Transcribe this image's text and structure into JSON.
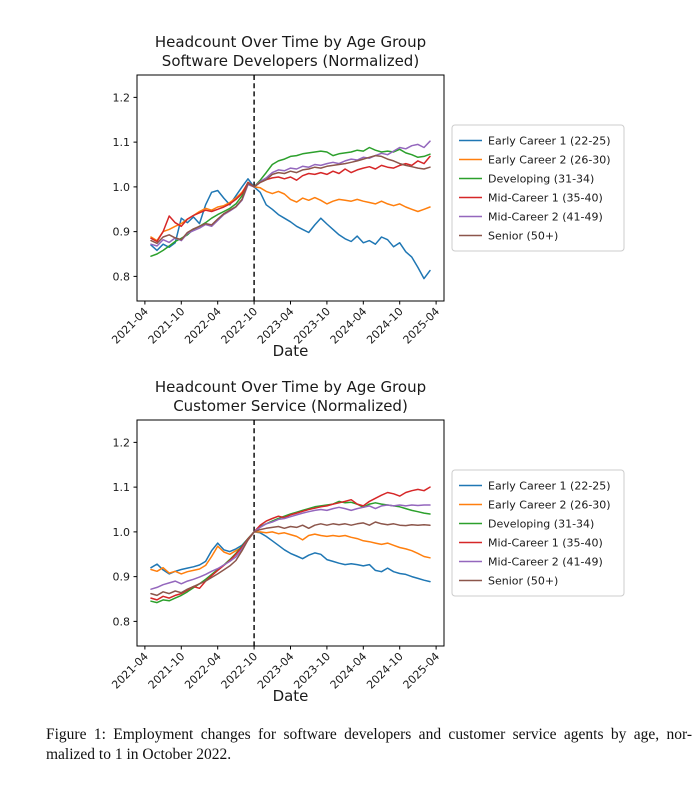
{
  "figure": {
    "caption_lines": [
      "Figure 1: Employment changes for software developers and customer service agents by age, nor-",
      "malized to 1 in October 2022."
    ]
  },
  "palette": {
    "blue": "#1f77b4",
    "orange": "#ff7f0e",
    "green": "#2ca02c",
    "red": "#d62728",
    "purple": "#9467bd",
    "brown": "#8c564b",
    "vline": "#000000",
    "spine": "#000000",
    "legend_edge": "#cccccc",
    "text": "#1a1a1a"
  },
  "chart_data": [
    {
      "type": "line",
      "title": "Headcount Over Time by Age Group",
      "subtitle": "Software Developers (Normalized)",
      "xlabel": "Date",
      "ylabel": "",
      "grid": false,
      "legend_position": "outside center right",
      "vline_x": "2022-10",
      "vline_style": "dashed",
      "yticks": [
        0.8,
        0.9,
        1.0,
        1.1,
        1.2
      ],
      "ylim": [
        0.745,
        1.25
      ],
      "xlim": [
        -2.3,
        48.3
      ],
      "xtick_labels": [
        "2021-04",
        "2021-10",
        "2022-04",
        "2022-10",
        "2023-04",
        "2023-10",
        "2024-04",
        "2024-10",
        "2025-04"
      ],
      "x": [
        "2021-05",
        "2021-06",
        "2021-07",
        "2021-08",
        "2021-09",
        "2021-10",
        "2021-11",
        "2021-12",
        "2022-01",
        "2022-02",
        "2022-03",
        "2022-04",
        "2022-05",
        "2022-06",
        "2022-07",
        "2022-08",
        "2022-09",
        "2022-10",
        "2022-11",
        "2022-12",
        "2023-01",
        "2023-02",
        "2023-03",
        "2023-04",
        "2023-05",
        "2023-06",
        "2023-07",
        "2023-08",
        "2023-09",
        "2023-10",
        "2023-11",
        "2023-12",
        "2024-01",
        "2024-02",
        "2024-03",
        "2024-04",
        "2024-05",
        "2024-06",
        "2024-07",
        "2024-08",
        "2024-09",
        "2024-10",
        "2024-11",
        "2024-12",
        "2025-01",
        "2025-02",
        "2025-03"
      ],
      "series": [
        {
          "name": "Early Career 1 (22-25)",
          "color": "#1f77b4",
          "values": [
            0.87,
            0.858,
            0.872,
            0.865,
            0.875,
            0.93,
            0.92,
            0.933,
            0.918,
            0.96,
            0.988,
            0.992,
            0.975,
            0.96,
            0.98,
            1.0,
            1.018,
            1.0,
            0.988,
            0.96,
            0.95,
            0.938,
            0.93,
            0.922,
            0.912,
            0.905,
            0.898,
            0.915,
            0.93,
            0.917,
            0.905,
            0.893,
            0.884,
            0.878,
            0.89,
            0.875,
            0.88,
            0.872,
            0.888,
            0.882,
            0.866,
            0.875,
            0.855,
            0.843,
            0.82,
            0.795,
            0.813
          ]
        },
        {
          "name": "Early Career 2 (26-30)",
          "color": "#ff7f0e",
          "values": [
            0.888,
            0.88,
            0.9,
            0.905,
            0.912,
            0.918,
            0.928,
            0.936,
            0.945,
            0.952,
            0.948,
            0.955,
            0.958,
            0.965,
            0.975,
            0.988,
            1.008,
            1.0,
            0.998,
            0.99,
            0.985,
            0.99,
            0.984,
            0.972,
            0.966,
            0.975,
            0.97,
            0.976,
            0.97,
            0.962,
            0.968,
            0.972,
            0.97,
            0.968,
            0.972,
            0.968,
            0.965,
            0.962,
            0.968,
            0.962,
            0.958,
            0.962,
            0.955,
            0.95,
            0.945,
            0.95,
            0.955
          ]
        },
        {
          "name": "Developing (31-34)",
          "color": "#2ca02c",
          "values": [
            0.845,
            0.85,
            0.858,
            0.868,
            0.878,
            0.885,
            0.893,
            0.905,
            0.912,
            0.92,
            0.93,
            0.938,
            0.945,
            0.952,
            0.962,
            0.98,
            1.01,
            1.0,
            1.015,
            1.032,
            1.05,
            1.058,
            1.062,
            1.068,
            1.07,
            1.074,
            1.076,
            1.078,
            1.08,
            1.078,
            1.07,
            1.074,
            1.076,
            1.078,
            1.082,
            1.08,
            1.088,
            1.082,
            1.078,
            1.08,
            1.078,
            1.084,
            1.076,
            1.072,
            1.066,
            1.068,
            1.073
          ]
        },
        {
          "name": "Mid-Career 1 (35-40)",
          "color": "#d62728",
          "values": [
            0.885,
            0.878,
            0.9,
            0.935,
            0.92,
            0.912,
            0.928,
            0.936,
            0.942,
            0.948,
            0.945,
            0.95,
            0.955,
            0.962,
            0.972,
            0.985,
            1.01,
            1.0,
            1.01,
            1.016,
            1.02,
            1.022,
            1.018,
            1.022,
            1.015,
            1.025,
            1.03,
            1.028,
            1.032,
            1.028,
            1.035,
            1.03,
            1.04,
            1.032,
            1.038,
            1.042,
            1.045,
            1.04,
            1.048,
            1.044,
            1.042,
            1.048,
            1.052,
            1.048,
            1.058,
            1.052,
            1.068
          ]
        },
        {
          "name": "Mid-Career 2 (41-49)",
          "color": "#9467bd",
          "values": [
            0.872,
            0.868,
            0.882,
            0.876,
            0.886,
            0.88,
            0.896,
            0.902,
            0.908,
            0.916,
            0.912,
            0.925,
            0.938,
            0.946,
            0.955,
            0.97,
            1.005,
            1.0,
            1.012,
            1.02,
            1.032,
            1.038,
            1.036,
            1.042,
            1.04,
            1.046,
            1.044,
            1.05,
            1.048,
            1.052,
            1.055,
            1.052,
            1.058,
            1.062,
            1.06,
            1.066,
            1.064,
            1.07,
            1.075,
            1.072,
            1.08,
            1.088,
            1.085,
            1.092,
            1.095,
            1.088,
            1.102
          ]
        },
        {
          "name": "Senior (50+)",
          "color": "#8c564b",
          "values": [
            0.88,
            0.874,
            0.888,
            0.893,
            0.886,
            0.882,
            0.898,
            0.906,
            0.912,
            0.918,
            0.915,
            0.928,
            0.94,
            0.948,
            0.956,
            0.972,
            1.008,
            1.0,
            1.01,
            1.016,
            1.028,
            1.032,
            1.03,
            1.035,
            1.032,
            1.038,
            1.04,
            1.044,
            1.042,
            1.046,
            1.048,
            1.05,
            1.052,
            1.055,
            1.058,
            1.062,
            1.066,
            1.07,
            1.068,
            1.062,
            1.058,
            1.052,
            1.048,
            1.045,
            1.042,
            1.04,
            1.044
          ]
        }
      ]
    },
    {
      "type": "line",
      "title": "Headcount Over Time by Age Group",
      "subtitle": "Customer Service (Normalized)",
      "xlabel": "Date",
      "ylabel": "",
      "grid": false,
      "legend_position": "outside center right",
      "vline_x": "2022-10",
      "vline_style": "dashed",
      "yticks": [
        0.8,
        0.9,
        1.0,
        1.1,
        1.2
      ],
      "ylim": [
        0.745,
        1.25
      ],
      "xlim": [
        -2.3,
        48.3
      ],
      "xtick_labels": [
        "2021-04",
        "2021-10",
        "2022-04",
        "2022-10",
        "2023-04",
        "2023-10",
        "2024-04",
        "2024-10",
        "2025-04"
      ],
      "x": [
        "2021-05",
        "2021-06",
        "2021-07",
        "2021-08",
        "2021-09",
        "2021-10",
        "2021-11",
        "2021-12",
        "2022-01",
        "2022-02",
        "2022-03",
        "2022-04",
        "2022-05",
        "2022-06",
        "2022-07",
        "2022-08",
        "2022-09",
        "2022-10",
        "2022-11",
        "2022-12",
        "2023-01",
        "2023-02",
        "2023-03",
        "2023-04",
        "2023-05",
        "2023-06",
        "2023-07",
        "2023-08",
        "2023-09",
        "2023-10",
        "2023-11",
        "2023-12",
        "2024-01",
        "2024-02",
        "2024-03",
        "2024-04",
        "2024-05",
        "2024-06",
        "2024-07",
        "2024-08",
        "2024-09",
        "2024-10",
        "2024-11",
        "2024-12",
        "2025-01",
        "2025-02",
        "2025-03"
      ],
      "series": [
        {
          "name": "Early Career 1 (22-25)",
          "color": "#1f77b4",
          "values": [
            0.92,
            0.928,
            0.915,
            0.906,
            0.912,
            0.916,
            0.919,
            0.922,
            0.926,
            0.934,
            0.958,
            0.975,
            0.96,
            0.956,
            0.962,
            0.97,
            0.985,
            1.0,
            0.998,
            0.99,
            0.98,
            0.97,
            0.96,
            0.952,
            0.946,
            0.94,
            0.948,
            0.953,
            0.95,
            0.938,
            0.934,
            0.93,
            0.927,
            0.929,
            0.927,
            0.924,
            0.927,
            0.914,
            0.911,
            0.919,
            0.911,
            0.907,
            0.905,
            0.9,
            0.896,
            0.892,
            0.889
          ]
        },
        {
          "name": "Early Career 2 (26-30)",
          "color": "#ff7f0e",
          "values": [
            0.916,
            0.912,
            0.92,
            0.908,
            0.912,
            0.906,
            0.911,
            0.914,
            0.917,
            0.925,
            0.945,
            0.968,
            0.955,
            0.95,
            0.958,
            0.965,
            0.982,
            1.0,
            1.0,
            0.998,
            1.0,
            0.996,
            0.998,
            0.994,
            0.99,
            0.982,
            0.992,
            0.995,
            0.992,
            0.99,
            0.992,
            0.99,
            0.992,
            0.988,
            0.985,
            0.98,
            0.978,
            0.975,
            0.972,
            0.975,
            0.97,
            0.965,
            0.962,
            0.958,
            0.952,
            0.945,
            0.942
          ]
        },
        {
          "name": "Developing (31-34)",
          "color": "#2ca02c",
          "values": [
            0.845,
            0.842,
            0.848,
            0.846,
            0.852,
            0.858,
            0.866,
            0.875,
            0.884,
            0.894,
            0.905,
            0.916,
            0.926,
            0.938,
            0.952,
            0.968,
            0.985,
            1.0,
            1.012,
            1.018,
            1.024,
            1.03,
            1.035,
            1.04,
            1.044,
            1.048,
            1.052,
            1.056,
            1.058,
            1.06,
            1.062,
            1.068,
            1.065,
            1.066,
            1.062,
            1.055,
            1.062,
            1.065,
            1.062,
            1.06,
            1.058,
            1.056,
            1.052,
            1.048,
            1.045,
            1.042,
            1.04
          ]
        },
        {
          "name": "Mid-Career 1 (35-40)",
          "color": "#d62728",
          "values": [
            0.852,
            0.848,
            0.856,
            0.852,
            0.858,
            0.862,
            0.87,
            0.878,
            0.874,
            0.89,
            0.902,
            0.914,
            0.925,
            0.936,
            0.95,
            0.966,
            0.984,
            1.0,
            1.015,
            1.024,
            1.03,
            1.035,
            1.032,
            1.038,
            1.042,
            1.046,
            1.05,
            1.053,
            1.056,
            1.058,
            1.062,
            1.065,
            1.068,
            1.072,
            1.062,
            1.058,
            1.068,
            1.075,
            1.082,
            1.088,
            1.085,
            1.08,
            1.088,
            1.092,
            1.095,
            1.092,
            1.1
          ]
        },
        {
          "name": "Mid-Career 2 (41-49)",
          "color": "#9467bd",
          "values": [
            0.872,
            0.876,
            0.882,
            0.886,
            0.89,
            0.884,
            0.89,
            0.894,
            0.899,
            0.905,
            0.912,
            0.918,
            0.926,
            0.934,
            0.944,
            0.962,
            0.982,
            1.0,
            1.01,
            1.018,
            1.022,
            1.028,
            1.03,
            1.034,
            1.038,
            1.042,
            1.045,
            1.048,
            1.05,
            1.048,
            1.052,
            1.055,
            1.052,
            1.048,
            1.052,
            1.055,
            1.058,
            1.052,
            1.058,
            1.06,
            1.058,
            1.06,
            1.058,
            1.06,
            1.059,
            1.06,
            1.06
          ]
        },
        {
          "name": "Senior (50+)",
          "color": "#8c564b",
          "values": [
            0.862,
            0.858,
            0.866,
            0.862,
            0.868,
            0.864,
            0.872,
            0.878,
            0.884,
            0.89,
            0.898,
            0.906,
            0.915,
            0.924,
            0.936,
            0.958,
            0.982,
            1.0,
            1.005,
            1.008,
            1.01,
            1.012,
            1.008,
            1.012,
            1.01,
            1.015,
            1.008,
            1.015,
            1.018,
            1.015,
            1.018,
            1.016,
            1.018,
            1.015,
            1.018,
            1.02,
            1.015,
            1.022,
            1.018,
            1.016,
            1.018,
            1.015,
            1.014,
            1.016,
            1.015,
            1.016,
            1.015
          ]
        }
      ]
    }
  ]
}
